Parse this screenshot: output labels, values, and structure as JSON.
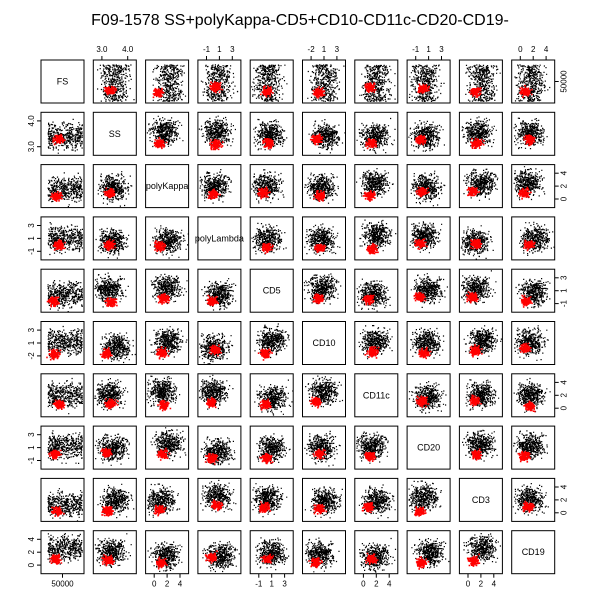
{
  "chart_data": {
    "type": "scatter",
    "title": "F09-1578 SS+polyKappa-CD5+CD10-CD11c-CD20-CD19-",
    "variables": [
      "FS",
      "SS",
      "polyKappa",
      "polyLambda",
      "CD5",
      "CD10",
      "CD11c",
      "CD20",
      "CD3",
      "CD19"
    ],
    "axes": {
      "FS": {
        "ticks": [
          "50000"
        ]
      },
      "SS": {
        "ticks": [
          "3.0",
          "4.0"
        ]
      },
      "polyKappa": {
        "ticks": [
          "0",
          "2",
          "4"
        ]
      },
      "polyLambda": {
        "ticks": [
          "-1",
          "1",
          "3"
        ]
      },
      "CD5": {
        "ticks": [
          "-1",
          "1",
          "3"
        ]
      },
      "CD10": {
        "ticks": [
          "-2",
          "1",
          "3"
        ]
      },
      "CD11c": {
        "ticks": [
          "0",
          "2",
          "4"
        ]
      },
      "CD20": {
        "ticks": [
          "-1",
          "1",
          "3"
        ]
      },
      "CD3": {
        "ticks": [
          "0",
          "2",
          "4"
        ]
      },
      "CD19": {
        "ticks": [
          "0",
          "2",
          "4"
        ]
      }
    },
    "axis_placement": {
      "top": [
        "SS",
        "polyLambda",
        "CD10",
        "CD20",
        "CD19"
      ],
      "bottom": [
        "FS",
        "polyKappa",
        "CD5",
        "CD11c",
        "CD3"
      ],
      "left": [
        "SS",
        "polyLambda",
        "CD10",
        "CD20",
        "CD19"
      ],
      "right": [
        "FS",
        "polyKappa",
        "CD5",
        "CD11c",
        "CD3"
      ]
    },
    "series": [
      {
        "color": "#000000"
      },
      {
        "color": "#ff0000"
      }
    ]
  }
}
